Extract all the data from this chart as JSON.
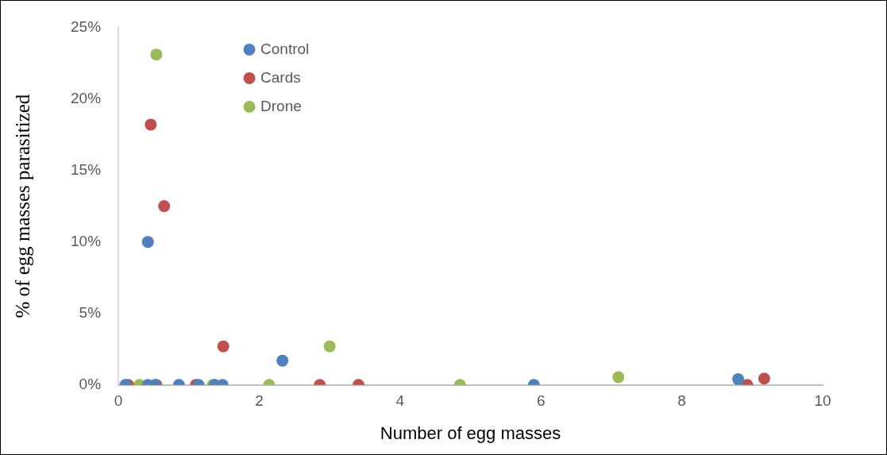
{
  "chart_data": {
    "type": "scatter",
    "xlabel": "Number of egg masses",
    "ylabel": "% of egg masses parasitized",
    "xlim": [
      0,
      10
    ],
    "xticks": [
      0,
      2,
      4,
      6,
      8,
      10
    ],
    "ylim": [
      0,
      25
    ],
    "yticks": [
      {
        "value": 0,
        "label": "0%"
      },
      {
        "value": 5,
        "label": "5%"
      },
      {
        "value": 10,
        "label": "10%"
      },
      {
        "value": 15,
        "label": "15%"
      },
      {
        "value": 20,
        "label": "20%"
      },
      {
        "value": 25,
        "label": "25%"
      }
    ],
    "grid": false,
    "legend": "top left",
    "marker": "circle",
    "series": [
      {
        "name": "Control",
        "color": "#4e81bd",
        "x": [
          0.1,
          0.42,
          0.52,
          0.86,
          1.14,
          1.37,
          1.48,
          0.42,
          2.33,
          5.9,
          8.8
        ],
        "values": [
          0,
          0,
          0,
          0,
          0,
          0,
          0,
          10,
          1.7,
          0,
          0.4
        ]
      },
      {
        "name": "Cards",
        "color": "#c0504d",
        "x": [
          0.14,
          0.54,
          1.1,
          2.86,
          3.41,
          8.93,
          0.46,
          0.65,
          1.49,
          9.17
        ],
        "values": [
          0,
          0,
          0,
          0,
          0,
          0,
          18.2,
          12.5,
          2.7,
          0.45
        ]
      },
      {
        "name": "Drone",
        "color": "#9bbb59",
        "x": [
          0.3,
          1.34,
          2.14,
          4.85,
          0.54,
          3.0,
          7.1
        ],
        "values": [
          0,
          0,
          0,
          0,
          23.1,
          2.7,
          0.55
        ]
      }
    ]
  }
}
